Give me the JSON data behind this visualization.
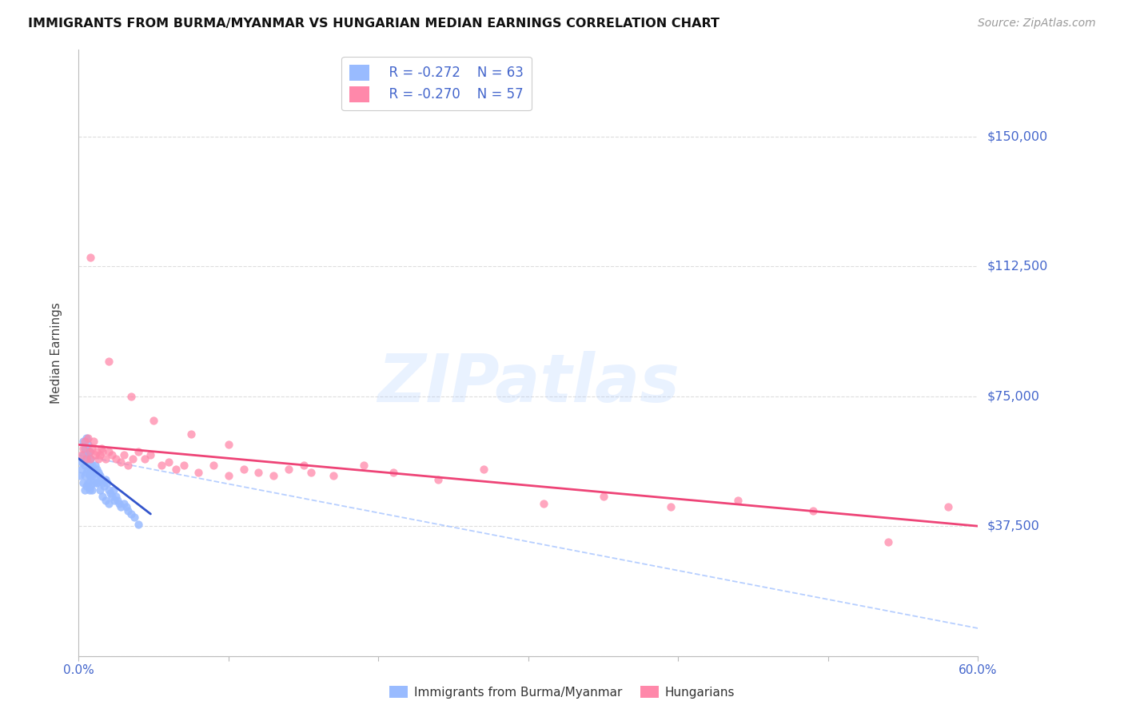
{
  "title": "IMMIGRANTS FROM BURMA/MYANMAR VS HUNGARIAN MEDIAN EARNINGS CORRELATION CHART",
  "source": "Source: ZipAtlas.com",
  "ylabel": "Median Earnings",
  "xlim": [
    0.0,
    0.6
  ],
  "ylim": [
    0,
    175000
  ],
  "yticks": [
    0,
    37500,
    75000,
    112500,
    150000
  ],
  "ytick_labels": [
    "",
    "$37,500",
    "$75,000",
    "$112,500",
    "$150,000"
  ],
  "xticks": [
    0.0,
    0.1,
    0.2,
    0.3,
    0.4,
    0.5,
    0.6
  ],
  "xtick_labels": [
    "0.0%",
    "",
    "",
    "",
    "",
    "",
    "60.0%"
  ],
  "legend_r1": "R = -0.272",
  "legend_n1": "N = 63",
  "legend_r2": "R = -0.270",
  "legend_n2": "N = 57",
  "color_blue": "#99bbff",
  "color_blue_dark": "#3355cc",
  "color_pink": "#ff88aa",
  "color_pink_light": "#ffaabb",
  "color_axis_blue": "#4466cc",
  "watermark": "ZIPatlas",
  "background_color": "#ffffff",
  "grid_color": "#dddddd",
  "blue_x": [
    0.001,
    0.002,
    0.002,
    0.003,
    0.003,
    0.004,
    0.004,
    0.004,
    0.005,
    0.005,
    0.005,
    0.006,
    0.006,
    0.006,
    0.007,
    0.007,
    0.007,
    0.008,
    0.008,
    0.008,
    0.009,
    0.009,
    0.01,
    0.01,
    0.011,
    0.011,
    0.012,
    0.012,
    0.013,
    0.014,
    0.015,
    0.016,
    0.017,
    0.018,
    0.019,
    0.02,
    0.021,
    0.022,
    0.023,
    0.024,
    0.025,
    0.026,
    0.027,
    0.028,
    0.03,
    0.032,
    0.033,
    0.035,
    0.037,
    0.04,
    0.003,
    0.004,
    0.005,
    0.006,
    0.007,
    0.008,
    0.009,
    0.01,
    0.012,
    0.014,
    0.016,
    0.018,
    0.02
  ],
  "blue_y": [
    52000,
    54000,
    56000,
    50000,
    58000,
    55000,
    52000,
    48000,
    57000,
    53000,
    49000,
    58000,
    54000,
    50000,
    55000,
    52000,
    48000,
    53000,
    51000,
    49000,
    52000,
    48000,
    53000,
    50000,
    55000,
    52000,
    54000,
    50000,
    53000,
    52000,
    51000,
    50000,
    49000,
    51000,
    50000,
    48000,
    47000,
    46000,
    48000,
    45000,
    46000,
    45000,
    44000,
    43000,
    44000,
    43000,
    42000,
    41000,
    40000,
    38000,
    62000,
    60000,
    63000,
    61000,
    59000,
    57000,
    55000,
    53000,
    50000,
    48000,
    46000,
    45000,
    44000
  ],
  "pink_x": [
    0.002,
    0.003,
    0.004,
    0.005,
    0.006,
    0.007,
    0.008,
    0.009,
    0.01,
    0.011,
    0.012,
    0.013,
    0.014,
    0.015,
    0.016,
    0.018,
    0.02,
    0.022,
    0.025,
    0.028,
    0.03,
    0.033,
    0.036,
    0.04,
    0.044,
    0.048,
    0.055,
    0.06,
    0.065,
    0.07,
    0.08,
    0.09,
    0.1,
    0.11,
    0.12,
    0.13,
    0.14,
    0.155,
    0.17,
    0.19,
    0.21,
    0.24,
    0.27,
    0.31,
    0.35,
    0.395,
    0.44,
    0.49,
    0.54,
    0.58,
    0.008,
    0.02,
    0.035,
    0.05,
    0.075,
    0.1,
    0.15
  ],
  "pink_y": [
    58000,
    60000,
    62000,
    57000,
    63000,
    59000,
    57000,
    60000,
    62000,
    58000,
    59000,
    57000,
    58000,
    60000,
    59000,
    57000,
    59000,
    58000,
    57000,
    56000,
    58000,
    55000,
    57000,
    59000,
    57000,
    58000,
    55000,
    56000,
    54000,
    55000,
    53000,
    55000,
    52000,
    54000,
    53000,
    52000,
    54000,
    53000,
    52000,
    55000,
    53000,
    51000,
    54000,
    44000,
    46000,
    43000,
    45000,
    42000,
    33000,
    43000,
    115000,
    85000,
    75000,
    68000,
    64000,
    61000,
    55000
  ],
  "blue_trend_x": [
    0.0,
    0.048
  ],
  "blue_trend_y": [
    57000,
    41000
  ],
  "pink_trend_x": [
    0.0,
    0.6
  ],
  "pink_trend_y": [
    61000,
    37500
  ],
  "dash_trend_x": [
    0.0,
    0.6
  ],
  "dash_trend_y": [
    58000,
    8000
  ]
}
